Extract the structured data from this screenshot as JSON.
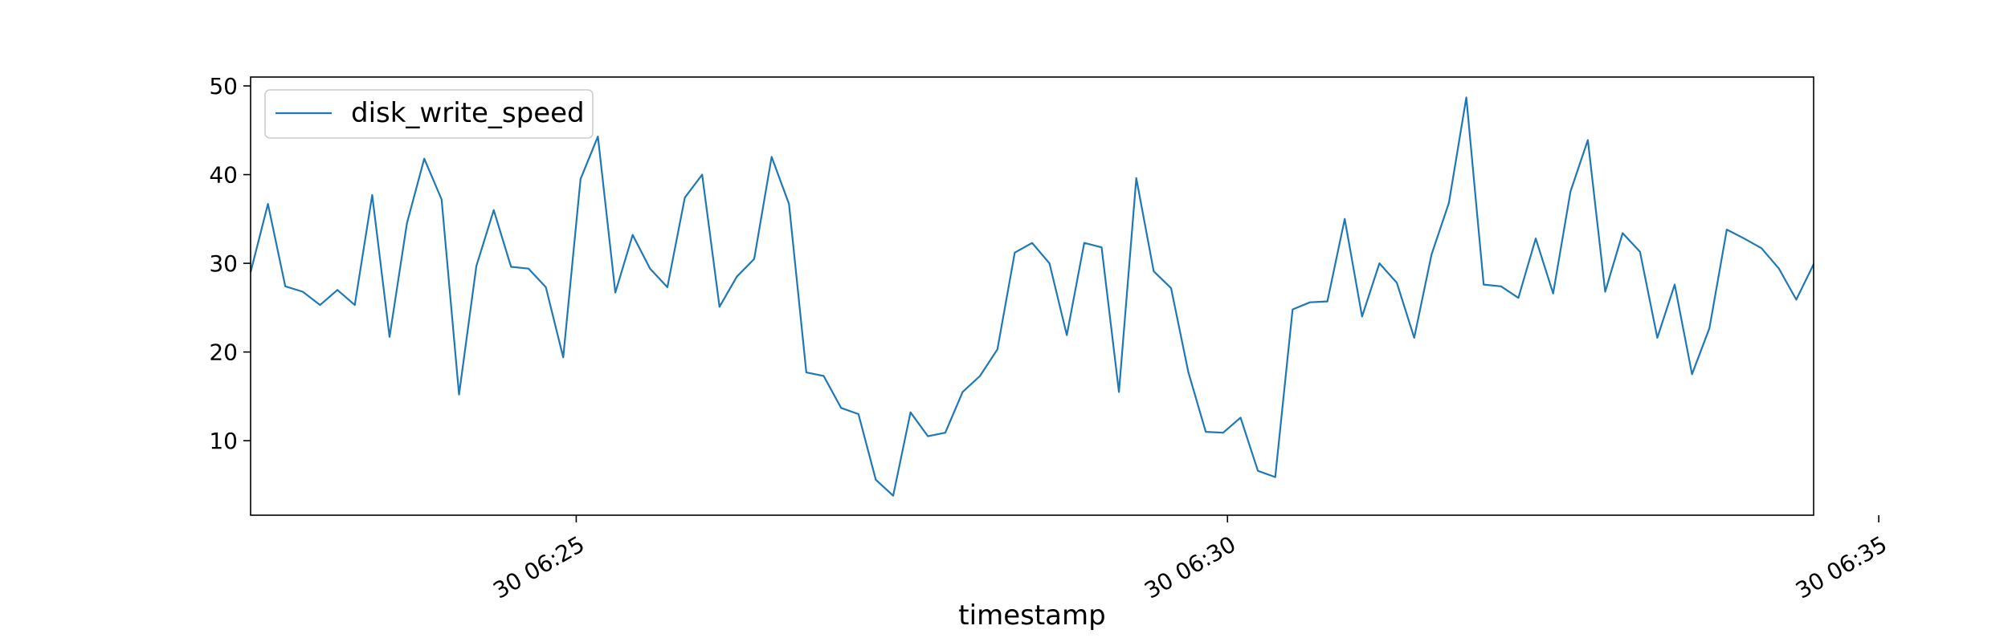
{
  "chart_data": {
    "type": "line",
    "xlabel": "timestamp",
    "ylabel": "",
    "x_start": "30 06:22:30",
    "x_step_seconds": 8,
    "x_ticks": [
      "30 06:25",
      "30 06:30",
      "30 06:35"
    ],
    "y_ticks": [
      10,
      20,
      30,
      40,
      50
    ],
    "ylim": [
      1.6,
      51.0
    ],
    "grid": false,
    "legend": {
      "placement": "upper-left"
    },
    "series": [
      {
        "name": "disk_write_speed",
        "color": "#1f77b4",
        "values": [
          29.0,
          36.7,
          27.4,
          26.8,
          25.3,
          27.0,
          25.3,
          37.7,
          21.7,
          34.5,
          41.8,
          37.2,
          15.2,
          29.7,
          36.0,
          29.6,
          29.4,
          27.3,
          19.4,
          39.5,
          44.3,
          26.7,
          33.2,
          29.4,
          27.3,
          37.4,
          40.0,
          25.1,
          28.5,
          30.5,
          42.0,
          36.7,
          17.7,
          17.3,
          13.7,
          13.0,
          5.6,
          3.8,
          13.2,
          10.5,
          10.9,
          15.5,
          17.3,
          20.3,
          31.2,
          32.3,
          30.0,
          21.9,
          32.3,
          31.8,
          15.5,
          39.6,
          29.1,
          27.2,
          17.7,
          11.0,
          10.9,
          12.6,
          6.6,
          5.9,
          24.8,
          25.6,
          25.7,
          35.0,
          24.0,
          30.0,
          27.8,
          21.6,
          31.0,
          36.8,
          48.7,
          27.6,
          27.4,
          26.1,
          32.8,
          26.6,
          38.1,
          43.9,
          26.8,
          33.4,
          31.3,
          21.6,
          27.6,
          17.5,
          22.7,
          33.8,
          32.8,
          31.7,
          29.4,
          25.9,
          29.9
        ]
      }
    ]
  }
}
